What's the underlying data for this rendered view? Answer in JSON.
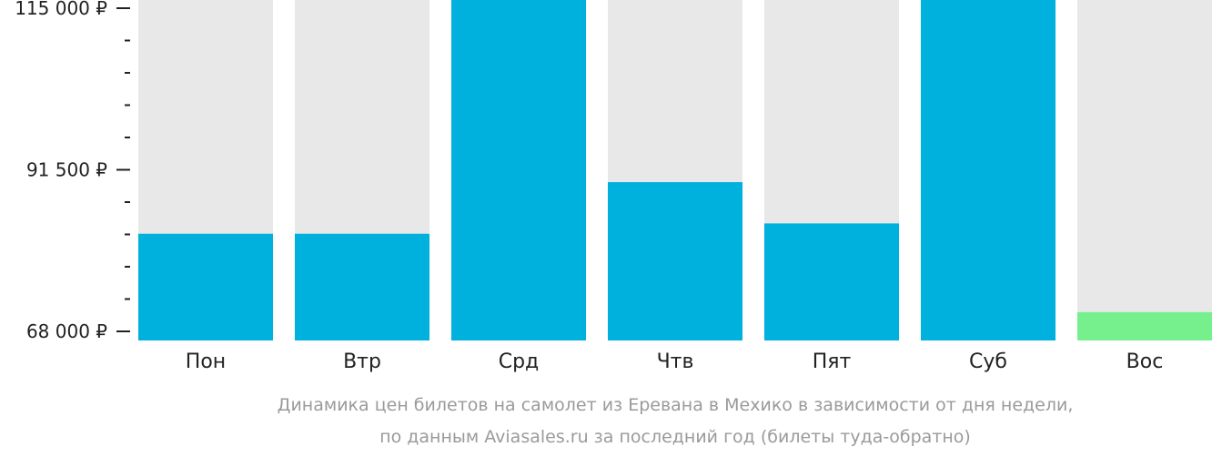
{
  "chart_data": {
    "type": "bar",
    "categories": [
      "Пон",
      "Втр",
      "Срд",
      "Чтв",
      "Пят",
      "Суб",
      "Вос"
    ],
    "values": [
      82200,
      82200,
      123500,
      89700,
      83700,
      125600,
      70800
    ],
    "value_axis_range": [
      68000,
      115000
    ],
    "y_tick_labels": [
      {
        "value": 115000,
        "label": "115 000 ₽"
      },
      {
        "value": 91500,
        "label": "91 500 ₽"
      },
      {
        "value": 68000,
        "label": "68 000 ₽"
      }
    ],
    "minor_ticks_between_labels": 4,
    "grid": false,
    "legend": "none",
    "highlight_index": 6,
    "caption_lines": [
      "Динамика цен билетов на самолет из Еревана в Мехико в зависимости от дня недели,",
      "по данным Aviasales.ru за последний год (билеты туда-обратно)"
    ]
  },
  "colors": {
    "bar": "#00b0dd",
    "highlight_bar": "#76f08c",
    "track": "#e8e8e8",
    "axis_text": "#222222",
    "caption": "#9a9a9a"
  }
}
